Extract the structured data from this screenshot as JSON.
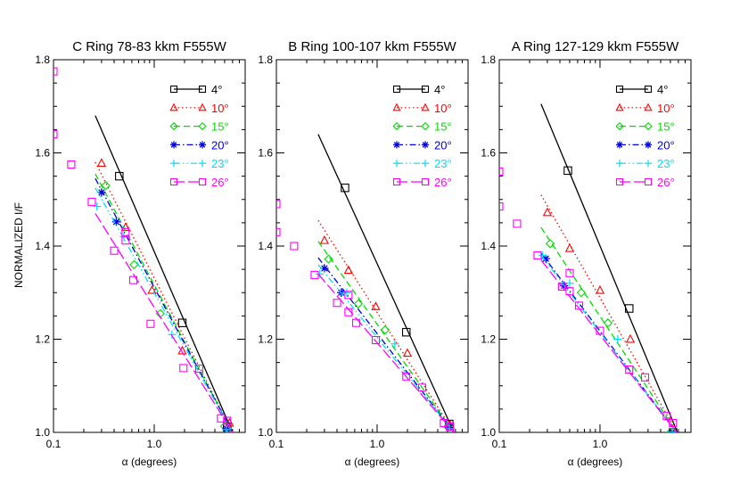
{
  "figure": {
    "ylabel": "NORMALIZED I/F",
    "xlabel": "α (degrees)"
  },
  "chart_data": [
    {
      "type": "scatter",
      "title": "C Ring 78-83 kkm  F555W",
      "xlabel": "α (degrees)",
      "ylabel": "NORMALIZED I/F",
      "xscale": "log",
      "xlim": [
        0.1,
        8
      ],
      "ylim": [
        1.0,
        1.8
      ],
      "xticks": [
        "0.1",
        "1.0"
      ],
      "yticks": [
        "1.0",
        "1.2",
        "1.4",
        "1.6",
        "1.8"
      ],
      "legend_position": "top-right",
      "series": [
        {
          "name": "4°",
          "color": "#000000",
          "marker": "square",
          "dash": "solid",
          "points": [
            [
              0.45,
              1.55
            ],
            [
              1.9,
              1.235
            ],
            [
              5.3,
              1.012
            ]
          ],
          "fit": [
            [
              0.26,
              1.68
            ],
            [
              6.0,
              1.0
            ]
          ]
        },
        {
          "name": "10°",
          "color": "#ff0000",
          "marker": "triangle",
          "dash": "dotted",
          "points": [
            [
              0.3,
              1.578
            ],
            [
              0.52,
              1.44
            ],
            [
              0.95,
              1.305
            ],
            [
              1.9,
              1.175
            ],
            [
              5.6,
              1.02
            ]
          ],
          "fit": [
            [
              0.26,
              1.58
            ],
            [
              6.0,
              1.0
            ]
          ]
        },
        {
          "name": "15°",
          "color": "#00dd00",
          "marker": "diamond",
          "dash": "dashed",
          "points": [
            [
              0.33,
              1.53
            ],
            [
              0.63,
              1.36
            ],
            [
              1.15,
              1.255
            ],
            [
              5.0,
              1.013
            ]
          ],
          "fit": [
            [
              0.26,
              1.555
            ],
            [
              6.0,
              1.0
            ]
          ]
        },
        {
          "name": "20°",
          "color": "#0000dd",
          "marker": "asterisk",
          "dash": "dashdot",
          "points": [
            [
              0.3,
              1.515
            ],
            [
              0.42,
              1.452
            ],
            [
              5.2,
              1.008
            ]
          ],
          "fit": [
            [
              0.26,
              1.545
            ],
            [
              6.0,
              1.0
            ]
          ]
        },
        {
          "name": "23°",
          "color": "#00ddff",
          "marker": "plus",
          "dash": "dashdotdot",
          "points": [
            [
              0.27,
              1.485
            ],
            [
              0.5,
              1.42
            ],
            [
              1.5,
              1.21
            ],
            [
              5.2,
              1.006
            ]
          ],
          "fit": [
            [
              0.26,
              1.525
            ],
            [
              6.0,
              1.0
            ]
          ]
        },
        {
          "name": "26°",
          "color": "#ff00ff",
          "marker": "square",
          "dash": "longdash",
          "points": [
            [
              0.1,
              1.775
            ],
            [
              0.1,
              1.64
            ],
            [
              0.15,
              1.575
            ],
            [
              0.24,
              1.495
            ],
            [
              0.4,
              1.39
            ],
            [
              0.52,
              1.412
            ],
            [
              0.52,
              1.43
            ],
            [
              0.62,
              1.327
            ],
            [
              0.92,
              1.233
            ],
            [
              1.95,
              1.138
            ],
            [
              2.8,
              1.137
            ],
            [
              4.6,
              1.03
            ],
            [
              5.3,
              1.025
            ]
          ],
          "fit": [
            [
              0.26,
              1.47
            ],
            [
              6.0,
              1.0
            ]
          ]
        }
      ]
    },
    {
      "type": "scatter",
      "title": "B Ring 100-107 kkm  F555W",
      "xlabel": "α (degrees)",
      "ylabel": "",
      "xscale": "log",
      "xlim": [
        0.1,
        8
      ],
      "ylim": [
        1.0,
        1.8
      ],
      "xticks": [
        "0.1",
        "1.0"
      ],
      "yticks": [
        "1.0",
        "1.2",
        "1.4",
        "1.6",
        "1.8"
      ],
      "legend_position": "top-right",
      "series": [
        {
          "name": "4°",
          "color": "#000000",
          "marker": "square",
          "dash": "solid",
          "points": [
            [
              0.48,
              1.525
            ],
            [
              1.95,
              1.215
            ],
            [
              5.2,
              1.018
            ]
          ],
          "fit": [
            [
              0.26,
              1.64
            ],
            [
              5.8,
              1.0
            ]
          ]
        },
        {
          "name": "10°",
          "color": "#ff0000",
          "marker": "triangle",
          "dash": "dotted",
          "points": [
            [
              0.3,
              1.412
            ],
            [
              0.52,
              1.348
            ],
            [
              0.97,
              1.27
            ],
            [
              2.0,
              1.17
            ],
            [
              5.3,
              1.016
            ]
          ],
          "fit": [
            [
              0.26,
              1.455
            ],
            [
              5.8,
              1.0
            ]
          ]
        },
        {
          "name": "15°",
          "color": "#00dd00",
          "marker": "diamond",
          "dash": "dashed",
          "points": [
            [
              0.33,
              1.372
            ],
            [
              0.65,
              1.276
            ],
            [
              1.2,
              1.22
            ],
            [
              5.0,
              1.012
            ]
          ],
          "fit": [
            [
              0.26,
              1.41
            ],
            [
              5.8,
              1.0
            ]
          ]
        },
        {
          "name": "20°",
          "color": "#0000dd",
          "marker": "asterisk",
          "dash": "dashdot",
          "points": [
            [
              0.3,
              1.352
            ],
            [
              0.44,
              1.3
            ],
            [
              5.2,
              1.01
            ]
          ],
          "fit": [
            [
              0.26,
              1.375
            ],
            [
              5.8,
              1.0
            ]
          ]
        },
        {
          "name": "23°",
          "color": "#00ddff",
          "marker": "plus",
          "dash": "dashdotdot",
          "points": [
            [
              0.27,
              1.34
            ],
            [
              0.5,
              1.3
            ],
            [
              1.5,
              1.19
            ],
            [
              5.2,
              1.008
            ]
          ],
          "fit": [
            [
              0.26,
              1.36
            ],
            [
              5.8,
              1.0
            ]
          ]
        },
        {
          "name": "26°",
          "color": "#ff00ff",
          "marker": "square",
          "dash": "longdash",
          "points": [
            [
              0.1,
              1.49
            ],
            [
              0.1,
              1.43
            ],
            [
              0.15,
              1.4
            ],
            [
              0.24,
              1.338
            ],
            [
              0.4,
              1.278
            ],
            [
              0.52,
              1.295
            ],
            [
              0.52,
              1.258
            ],
            [
              0.62,
              1.235
            ],
            [
              0.97,
              1.198
            ],
            [
              1.95,
              1.12
            ],
            [
              2.8,
              1.096
            ],
            [
              4.6,
              1.02
            ],
            [
              5.3,
              1.012
            ]
          ],
          "fit": [
            [
              0.26,
              1.34
            ],
            [
              5.8,
              1.0
            ]
          ]
        }
      ]
    },
    {
      "type": "scatter",
      "title": "A Ring 127-129 kkm  F555W",
      "xlabel": "α (degrees)",
      "ylabel": "",
      "xscale": "log",
      "xlim": [
        0.1,
        8
      ],
      "ylim": [
        1.0,
        1.8
      ],
      "xticks": [
        "0.1",
        "1.0"
      ],
      "yticks": [
        "1.0",
        "1.2",
        "1.4",
        "1.6",
        "1.8"
      ],
      "legend_position": "top-right",
      "series": [
        {
          "name": "4°",
          "color": "#000000",
          "marker": "square",
          "dash": "solid",
          "points": [
            [
              0.48,
              1.562
            ],
            [
              1.95,
              1.266
            ],
            [
              5.3,
              1.0
            ]
          ],
          "fit": [
            [
              0.26,
              1.705
            ],
            [
              6.0,
              0.995
            ]
          ]
        },
        {
          "name": "10°",
          "color": "#ff0000",
          "marker": "triangle",
          "dash": "dotted",
          "points": [
            [
              0.3,
              1.472
            ],
            [
              0.5,
              1.395
            ],
            [
              1.0,
              1.305
            ],
            [
              2.0,
              1.2
            ],
            [
              5.3,
              1.002
            ]
          ],
          "fit": [
            [
              0.26,
              1.51
            ],
            [
              6.0,
              0.995
            ]
          ]
        },
        {
          "name": "15°",
          "color": "#00dd00",
          "marker": "diamond",
          "dash": "dashed",
          "points": [
            [
              0.32,
              1.405
            ],
            [
              0.65,
              1.3
            ],
            [
              1.2,
              1.235
            ],
            [
              5.0,
              1.0
            ]
          ],
          "fit": [
            [
              0.26,
              1.44
            ],
            [
              6.0,
              0.995
            ]
          ]
        },
        {
          "name": "20°",
          "color": "#0000dd",
          "marker": "asterisk",
          "dash": "dashdot",
          "points": [
            [
              0.29,
              1.373
            ],
            [
              0.44,
              1.315
            ],
            [
              5.2,
              1.0
            ]
          ],
          "fit": [
            [
              0.26,
              1.385
            ],
            [
              6.0,
              0.995
            ]
          ]
        },
        {
          "name": "23°",
          "color": "#00ddff",
          "marker": "plus",
          "dash": "dashdotdot",
          "points": [
            [
              0.27,
              1.38
            ],
            [
              0.5,
              1.32
            ],
            [
              1.5,
              1.2
            ],
            [
              5.2,
              1.0
            ]
          ],
          "fit": [
            [
              0.26,
              1.38
            ],
            [
              6.0,
              0.995
            ]
          ]
        },
        {
          "name": "26°",
          "color": "#ff00ff",
          "marker": "square",
          "dash": "longdash",
          "points": [
            [
              0.1,
              1.56
            ],
            [
              0.1,
              1.485
            ],
            [
              0.15,
              1.448
            ],
            [
              0.24,
              1.38
            ],
            [
              0.42,
              1.313
            ],
            [
              0.5,
              1.342
            ],
            [
              0.5,
              1.303
            ],
            [
              0.62,
              1.272
            ],
            [
              1.0,
              1.218
            ],
            [
              1.95,
              1.135
            ],
            [
              2.8,
              1.118
            ],
            [
              4.6,
              1.035
            ],
            [
              5.3,
              1.02
            ]
          ],
          "fit": [
            [
              0.26,
              1.37
            ],
            [
              6.0,
              0.995
            ]
          ]
        }
      ]
    }
  ]
}
